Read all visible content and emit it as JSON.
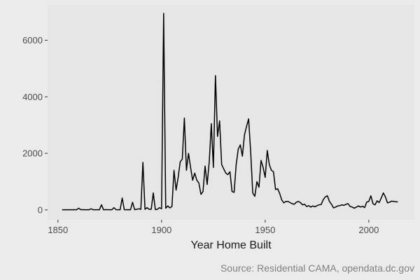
{
  "chart_data": {
    "type": "line",
    "title": "",
    "xlabel": "Year Home Built",
    "ylabel": "",
    "caption": "Source: Residential CAMA, opendata.dc.gov",
    "xlim": [
      1845,
      2022
    ],
    "ylim": [
      -350,
      7250
    ],
    "x_ticks": [
      1850,
      1900,
      1950,
      2000
    ],
    "y_ticks": [
      0,
      2000,
      4000,
      6000
    ],
    "x_tick_labels": [
      "1850",
      "1900",
      "1950",
      "2000"
    ],
    "y_tick_labels": [
      "0",
      "2000",
      "4000",
      "6000"
    ],
    "grid": false,
    "panel_color": "#e6e6e6",
    "background_color": "#ebebeb",
    "line_color": "#000000",
    "series": [
      {
        "x": [
          1852,
          1853,
          1854,
          1855,
          1856,
          1857,
          1858,
          1859,
          1860,
          1861,
          1862,
          1863,
          1864,
          1865,
          1866,
          1867,
          1868,
          1869,
          1870,
          1871,
          1872,
          1873,
          1874,
          1875,
          1876,
          1877,
          1878,
          1879,
          1880,
          1881,
          1882,
          1883,
          1884,
          1885,
          1886,
          1887,
          1888,
          1889,
          1890,
          1891,
          1892,
          1893,
          1894,
          1895,
          1896,
          1897,
          1898,
          1899,
          1900,
          1901,
          1902,
          1903,
          1904,
          1905,
          1906,
          1907,
          1908,
          1909,
          1910,
          1911,
          1912,
          1913,
          1914,
          1915,
          1916,
          1917,
          1918,
          1919,
          1920,
          1921,
          1922,
          1923,
          1924,
          1925,
          1926,
          1927,
          1928,
          1929,
          1930,
          1931,
          1932,
          1933,
          1934,
          1935,
          1936,
          1937,
          1938,
          1939,
          1940,
          1941,
          1942,
          1943,
          1944,
          1945,
          1946,
          1947,
          1948,
          1949,
          1950,
          1951,
          1952,
          1953,
          1954,
          1955,
          1956,
          1957,
          1958,
          1959,
          1960,
          1961,
          1962,
          1963,
          1964,
          1965,
          1966,
          1967,
          1968,
          1969,
          1970,
          1971,
          1972,
          1973,
          1974,
          1975,
          1976,
          1977,
          1978,
          1979,
          1980,
          1981,
          1982,
          1983,
          1984,
          1985,
          1986,
          1987,
          1988,
          1989,
          1990,
          1991,
          1992,
          1993,
          1994,
          1995,
          1996,
          1997,
          1998,
          1999,
          2000,
          2001,
          2002,
          2003,
          2004,
          2005,
          2006,
          2007,
          2008,
          2009,
          2010,
          2011,
          2012,
          2013,
          2014
        ],
        "y": [
          5,
          5,
          5,
          5,
          5,
          5,
          10,
          5,
          60,
          10,
          10,
          5,
          5,
          5,
          40,
          5,
          5,
          5,
          5,
          180,
          5,
          10,
          10,
          5,
          5,
          80,
          10,
          5,
          5,
          420,
          10,
          5,
          10,
          5,
          270,
          10,
          20,
          40,
          20,
          1680,
          20,
          80,
          20,
          20,
          600,
          10,
          20,
          80,
          40,
          6950,
          60,
          140,
          70,
          120,
          1400,
          700,
          1150,
          1700,
          1800,
          3250,
          1400,
          2000,
          1500,
          1050,
          1300,
          1050,
          950,
          550,
          650,
          1550,
          900,
          1700,
          3050,
          1500,
          4750,
          2600,
          3150,
          1600,
          1450,
          1300,
          1250,
          1350,
          650,
          620,
          1600,
          2150,
          2300,
          1900,
          2650,
          2950,
          3220,
          2050,
          600,
          480,
          1000,
          800,
          1750,
          1500,
          1150,
          2100,
          1600,
          1400,
          1350,
          720,
          750,
          580,
          350,
          250,
          300,
          300,
          260,
          220,
          200,
          270,
          300,
          260,
          180,
          200,
          120,
          150,
          100,
          140,
          110,
          150,
          180,
          190,
          360,
          460,
          500,
          300,
          200,
          70,
          100,
          140,
          150,
          180,
          160,
          200,
          220,
          120,
          100,
          60,
          100,
          140,
          100,
          130,
          80,
          280,
          300,
          500,
          220,
          180,
          320,
          260,
          420,
          600,
          460,
          250,
          270,
          310,
          300,
          290,
          280
        ]
      }
    ]
  }
}
